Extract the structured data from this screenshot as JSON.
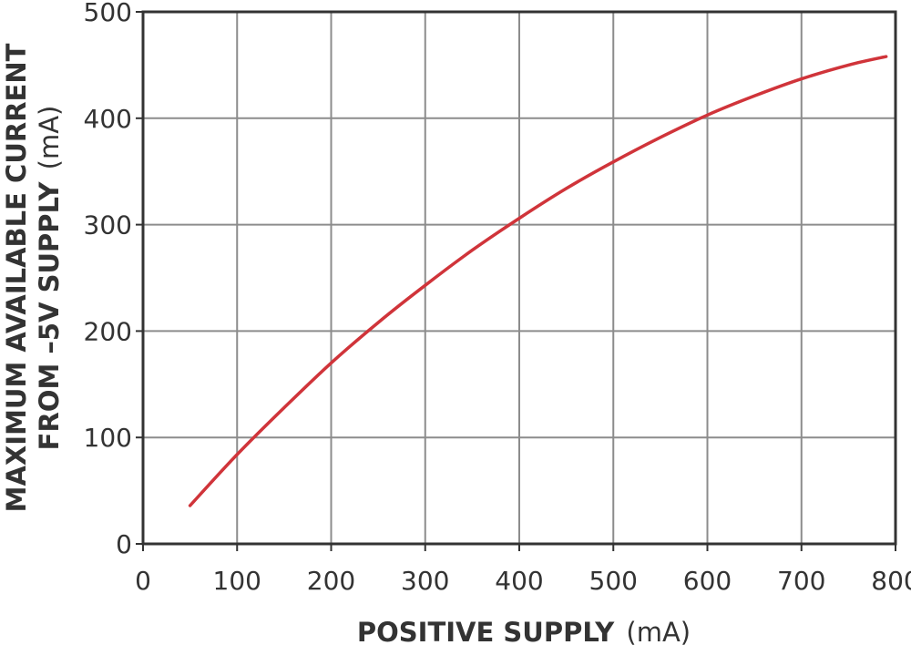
{
  "chart_data": {
    "type": "line",
    "title": "",
    "xlabel": {
      "bold": "POSITIVE SUPPLY",
      "unit": "(mA)"
    },
    "ylabel": {
      "line1": "MAXIMUM AVAILABLE CURRENT",
      "line2_bold": "FROM –5V SUPPLY",
      "line2_unit": "(mA)"
    },
    "xlim": [
      0,
      800
    ],
    "ylim": [
      0,
      500
    ],
    "xticks": [
      "0",
      "100",
      "200",
      "300",
      "400",
      "500",
      "600",
      "700",
      "800"
    ],
    "yticks": [
      "0",
      "100",
      "200",
      "300",
      "400",
      "500"
    ],
    "grid": true,
    "line_color": "#d0343a",
    "series": [
      {
        "x": [
          50,
          100,
          150,
          200,
          250,
          300,
          350,
          400,
          450,
          500,
          550,
          600,
          650,
          700,
          750,
          790
        ],
        "y": [
          36,
          84,
          128,
          170,
          208,
          243,
          276,
          306,
          334,
          359,
          382,
          403,
          421,
          437,
          450,
          458
        ]
      }
    ]
  }
}
